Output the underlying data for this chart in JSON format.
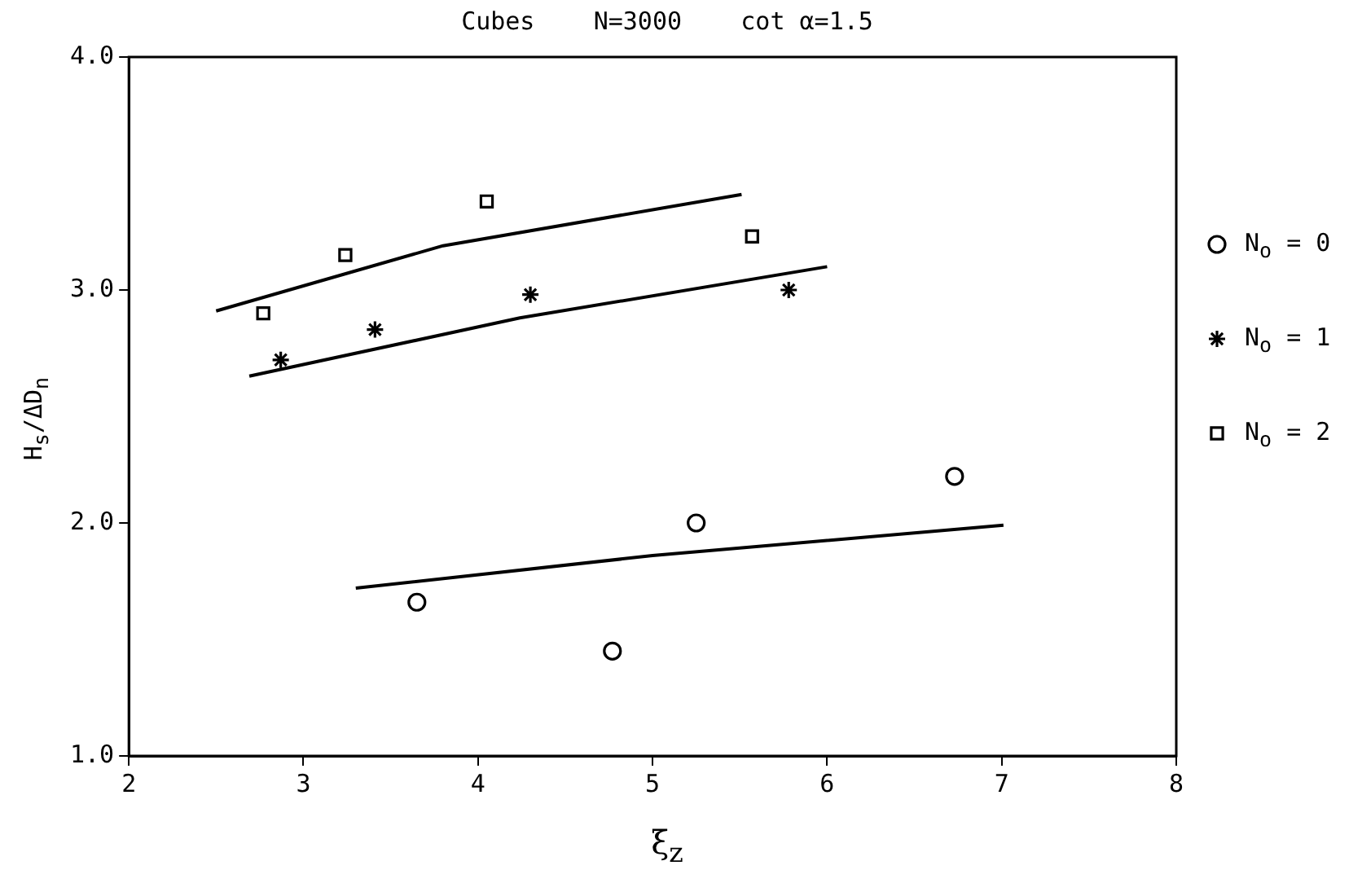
{
  "chart_data": {
    "type": "scatter",
    "title": "Cubes    N=3000    cot α=1.5",
    "xlabel": "ξ$_{z}$",
    "ylabel": "H$_{s}$/ΔD$_{n}$",
    "xlim": [
      2,
      8
    ],
    "xticks": [
      2,
      3,
      4,
      5,
      6,
      7,
      8
    ],
    "ylim": [
      1,
      4
    ],
    "yticks": [
      {
        "value": 1,
        "label": "1.0"
      },
      {
        "value": 2,
        "label": "2.0"
      },
      {
        "value": 3,
        "label": "3.0"
      },
      {
        "value": 4,
        "label": "4.0"
      }
    ],
    "grid": false,
    "legend": "right",
    "series": [
      {
        "name": "N$_{o}$ = 0",
        "color": "#000000",
        "marker": "circle",
        "x": [
          3.65,
          4.77,
          5.25,
          6.73
        ],
        "values": [
          1.66,
          1.45,
          2.0,
          2.2
        ]
      },
      {
        "name": "N$_{o}$ = 1",
        "color": "#000000",
        "marker": "cross",
        "x": [
          2.87,
          3.41,
          4.3,
          5.78
        ],
        "values": [
          2.7,
          2.83,
          2.98,
          3.0
        ]
      },
      {
        "name": "N$_{o}$ = 2",
        "color": "#000000",
        "marker": "square",
        "x": [
          2.77,
          3.24,
          4.05,
          5.57
        ],
        "values": [
          2.9,
          3.15,
          3.38,
          3.23
        ]
      },
      {
        "type": "line",
        "color": "#000000",
        "marker": "none",
        "x": [
          3.3,
          5.0,
          7.01
        ],
        "values": [
          1.72,
          1.86,
          1.99
        ]
      },
      {
        "type": "line",
        "color": "#000000",
        "marker": "none",
        "x": [
          2.69,
          4.24,
          6.0
        ],
        "values": [
          2.63,
          2.88,
          3.1
        ]
      },
      {
        "type": "line",
        "color": "#000000",
        "marker": "none",
        "x": [
          2.5,
          3.8,
          5.51
        ],
        "values": [
          2.91,
          3.19,
          3.41
        ]
      }
    ]
  }
}
